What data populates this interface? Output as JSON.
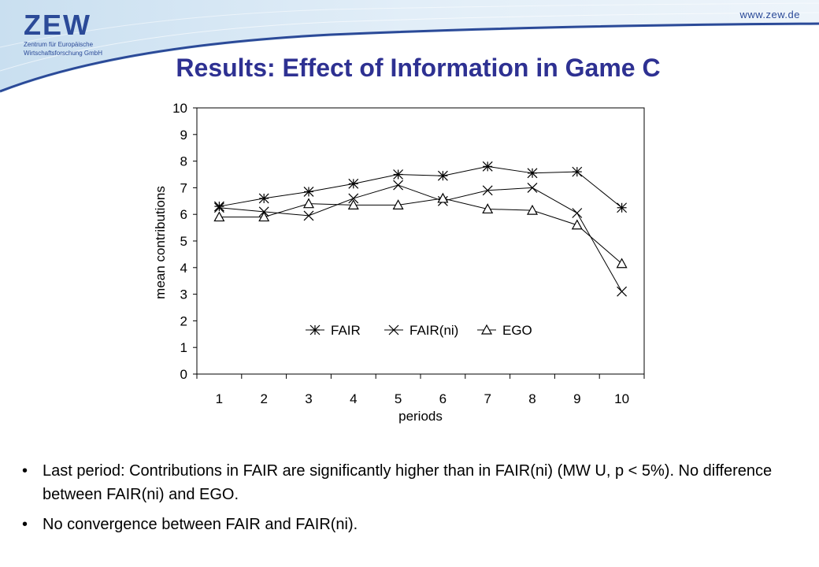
{
  "header": {
    "logo_text": "ZEW",
    "logo_sub_1": "Zentrum für Europäische",
    "logo_sub_2": "Wirtschaftsforschung GmbH",
    "url": "www.zew.de",
    "title": "Results: Effect of Information in Game C"
  },
  "colors": {
    "title": "#2e3192",
    "logo": "#2b4a98",
    "band": "#dbe9f4",
    "band_line": "#2b4a98"
  },
  "chart_data": {
    "type": "line",
    "title": "",
    "xlabel": "periods",
    "ylabel": "mean contributions",
    "x": [
      1,
      2,
      3,
      4,
      5,
      6,
      7,
      8,
      9,
      10
    ],
    "ylim": [
      0,
      10
    ],
    "yticks": [
      "0",
      "1",
      "2",
      "3",
      "4",
      "5",
      "6",
      "7",
      "8",
      "9",
      "10"
    ],
    "xticks": [
      "1",
      "2",
      "3",
      "4",
      "5",
      "6",
      "7",
      "8",
      "9",
      "10"
    ],
    "grid": false,
    "legend_position": "lower-center",
    "series": [
      {
        "name": "FAIR",
        "marker": "asterisk",
        "values": [
          6.3,
          6.6,
          6.85,
          7.15,
          7.5,
          7.45,
          7.8,
          7.55,
          7.6,
          6.25
        ]
      },
      {
        "name": "FAIR(ni)",
        "marker": "x",
        "values": [
          6.25,
          6.1,
          5.95,
          6.6,
          7.1,
          6.5,
          6.9,
          7.0,
          6.05,
          3.1
        ]
      },
      {
        "name": "EGO",
        "marker": "triangle",
        "values": [
          5.9,
          5.9,
          6.4,
          6.35,
          6.35,
          6.6,
          6.2,
          6.15,
          5.6,
          4.15
        ]
      }
    ]
  },
  "bullets": [
    {
      "dot": "•",
      "text": "Last period: Contributions in FAIR are significantly higher than in FAIR(ni) (MW U, p < 5%). No difference between FAIR(ni) and EGO."
    },
    {
      "dot": "•",
      "text": "No convergence between FAIR and FAIR(ni)."
    }
  ]
}
